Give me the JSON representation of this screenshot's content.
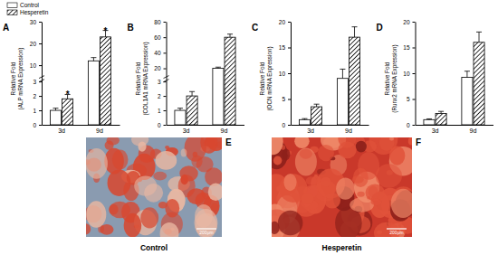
{
  "chart_data": [
    {
      "type": "bar",
      "title": "A",
      "y_label": [
        "Relative Fold",
        "(ALP mRNA Expression)"
      ],
      "categories": [
        "3d",
        "9d"
      ],
      "series": [
        {
          "name": "Control",
          "color": "#ffffff",
          "values": [
            1.0,
            12
          ],
          "errors": [
            0.15,
            1.5
          ]
        },
        {
          "name": "Hesperetin",
          "color": "#000000",
          "marker": "hatch",
          "values": [
            1.8,
            23
          ],
          "errors": [
            0.3,
            3
          ],
          "significance": [
            "*",
            "*"
          ]
        }
      ],
      "ylim": [
        0,
        30
      ],
      "yticks": [
        0,
        1,
        2,
        3,
        10,
        20,
        30
      ],
      "y_break": [
        3,
        5
      ],
      "legend": "upper left"
    },
    {
      "type": "bar",
      "title": "B",
      "y_label": [
        "Relative Fold",
        "(COL1A1 mRNA Expression)"
      ],
      "categories": [
        "3d",
        "9d"
      ],
      "series": [
        {
          "name": "Control",
          "color": "#ffffff",
          "values": [
            1.0,
            20
          ],
          "errors": [
            0.15,
            1.5
          ]
        },
        {
          "name": "Hesperetin",
          "color": "#000000",
          "marker": "hatch",
          "values": [
            2.0,
            60
          ],
          "errors": [
            0.3,
            4
          ]
        }
      ],
      "ylim": [
        0,
        80
      ],
      "yticks": [
        0,
        1,
        2,
        3,
        20,
        40,
        60,
        80
      ],
      "y_break": [
        3,
        10
      ]
    },
    {
      "type": "bar",
      "title": "C",
      "y_label": [
        "Relative Fold",
        "(OCN mRNA Expression)"
      ],
      "categories": [
        "3d",
        "9d"
      ],
      "series": [
        {
          "name": "Control",
          "color": "#ffffff",
          "values": [
            1.0,
            9
          ],
          "errors": [
            0.2,
            1.8
          ]
        },
        {
          "name": "Hesperetin",
          "color": "#000000",
          "marker": "hatch",
          "values": [
            3.5,
            17
          ],
          "errors": [
            0.5,
            2
          ]
        }
      ],
      "ylim": [
        0,
        20
      ],
      "yticks": [
        0,
        5,
        10,
        15,
        20
      ]
    },
    {
      "type": "bar",
      "title": "D",
      "y_label": [
        "Relative Fold",
        "(Runx2 mRNA Expression)"
      ],
      "categories": [
        "3d",
        "9d"
      ],
      "series": [
        {
          "name": "Control",
          "color": "#ffffff",
          "values": [
            1.0,
            9.2
          ],
          "errors": [
            0.15,
            1.2
          ]
        },
        {
          "name": "Hesperetin",
          "color": "#000000",
          "marker": "hatch",
          "values": [
            2.2,
            16
          ],
          "errors": [
            0.4,
            2
          ]
        }
      ],
      "ylim": [
        0,
        20
      ],
      "yticks": [
        0,
        5,
        10,
        15,
        20
      ]
    }
  ],
  "images": [
    {
      "label": "E",
      "caption": "Control",
      "scale_bar": "200μm"
    },
    {
      "label": "F",
      "caption": "Hesperetin",
      "scale_bar": "200μm"
    }
  ]
}
